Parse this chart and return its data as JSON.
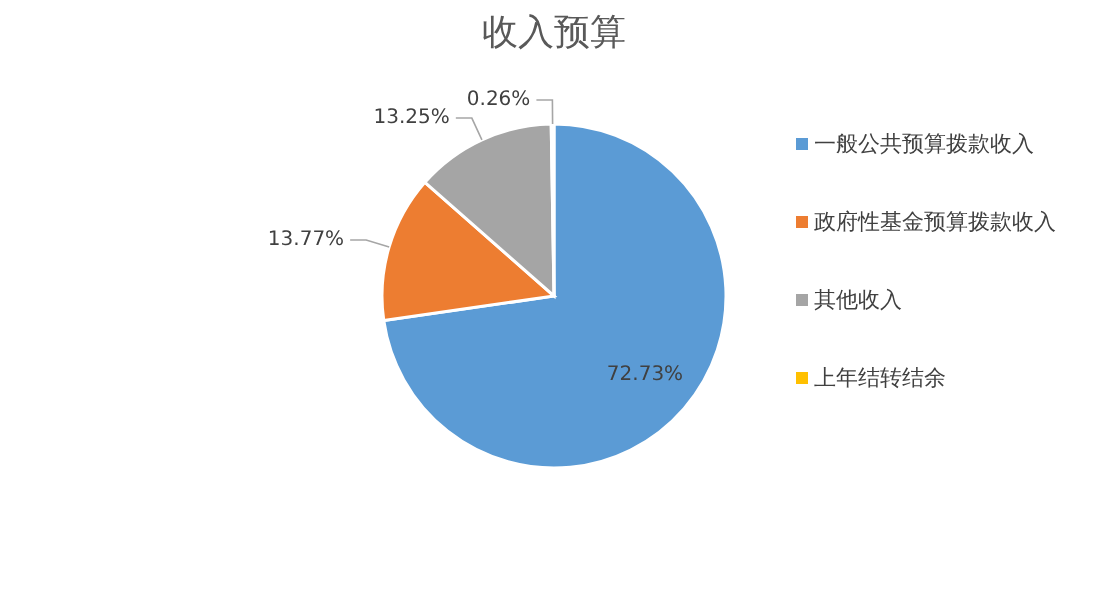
{
  "chart_data": {
    "type": "pie",
    "title": "收入预算",
    "categories": [
      "一般公共预算拨款收入",
      "政府性基金预算拨款收入",
      "其他收入",
      "上年结转结余"
    ],
    "values": [
      72.73,
      13.77,
      13.25,
      0.26
    ],
    "colors": [
      "#5b9bd5",
      "#ed7d31",
      "#a5a5a5",
      "#ffc000"
    ],
    "value_labels": [
      "72.73%",
      "13.77%",
      "13.25%",
      "0.26%"
    ],
    "legend": "right"
  }
}
